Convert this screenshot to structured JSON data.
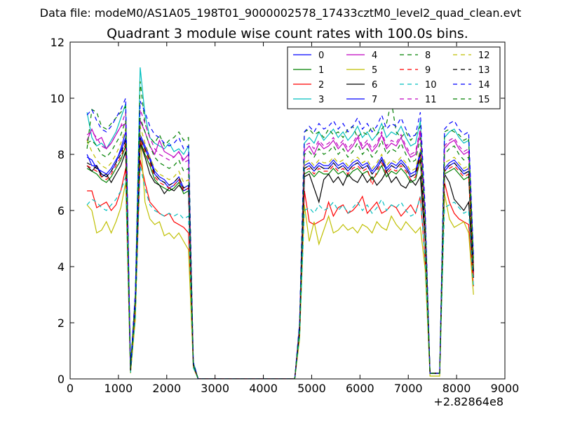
{
  "super_title": "Data file: modeM0/AS1A05_198T01_9000002578_17433cztM0_level2_quad_clean.evt",
  "chart_data": {
    "type": "line",
    "title": "Quadrant 3 module wise count rates with 100.0s bins.",
    "xlabel": "",
    "ylabel": "",
    "x_offset_label": "+2.82864e8",
    "xlim": [
      0,
      9000
    ],
    "ylim": [
      0,
      12
    ],
    "xticks": [
      0,
      1000,
      2000,
      3000,
      4000,
      5000,
      6000,
      7000,
      8000,
      9000
    ],
    "yticks": [
      0,
      2,
      4,
      6,
      8,
      10,
      12
    ],
    "xtick_labels": [
      "0",
      "1000",
      "2000",
      "3000",
      "4000",
      "5000",
      "6000",
      "7000",
      "8000",
      "9000"
    ],
    "ytick_labels": [
      "0",
      "2",
      "4",
      "6",
      "8",
      "10",
      "12"
    ],
    "legend_position": "top-right",
    "grid": false,
    "x": [
      350,
      450,
      550,
      650,
      750,
      850,
      950,
      1050,
      1150,
      1250,
      1350,
      1450,
      1550,
      1650,
      1750,
      1850,
      1950,
      2050,
      2150,
      2250,
      2350,
      2450,
      2550,
      2650,
      2750,
      4650,
      4750,
      4850,
      4950,
      5050,
      5150,
      5250,
      5350,
      5450,
      5550,
      5650,
      5750,
      5850,
      5950,
      6050,
      6150,
      6250,
      6350,
      6450,
      6550,
      6650,
      6750,
      6850,
      6950,
      7050,
      7150,
      7250,
      7350,
      7450,
      7650,
      7750,
      7850,
      7950,
      8050,
      8150,
      8250,
      8350
    ],
    "series": [
      {
        "name": "0",
        "color": "#0000ff",
        "dash": "solid",
        "values": [
          8.0,
          7.6,
          7.6,
          7.3,
          7.2,
          7.4,
          7.7,
          8.2,
          8.8,
          0.3,
          2.7,
          8.7,
          8.3,
          7.9,
          7.4,
          7.2,
          7.1,
          6.9,
          7.0,
          7.2,
          6.8,
          6.9,
          0.5,
          0.0,
          0.0,
          0.0,
          1.8,
          7.6,
          7.7,
          7.5,
          7.7,
          7.6,
          7.6,
          7.8,
          7.6,
          7.7,
          7.5,
          7.7,
          7.8,
          7.6,
          7.7,
          7.4,
          7.6,
          7.9,
          7.5,
          7.7,
          7.6,
          7.8,
          7.6,
          7.3,
          7.4,
          8.1,
          5.2,
          0.2,
          0.2,
          7.5,
          7.7,
          7.8,
          7.6,
          7.4,
          7.5,
          3.8
        ]
      },
      {
        "name": "1",
        "color": "#008000",
        "dash": "solid",
        "values": [
          7.5,
          7.4,
          7.3,
          7.1,
          7.0,
          7.2,
          7.5,
          7.8,
          8.3,
          0.3,
          2.6,
          8.5,
          8.0,
          7.6,
          7.1,
          6.9,
          6.8,
          6.7,
          6.8,
          7.0,
          6.6,
          6.7,
          0.5,
          0.0,
          0.0,
          0.0,
          1.7,
          7.3,
          7.4,
          7.2,
          7.4,
          7.3,
          7.3,
          7.5,
          7.3,
          7.4,
          7.2,
          7.4,
          7.5,
          7.3,
          7.4,
          7.1,
          7.3,
          7.6,
          7.2,
          7.4,
          7.3,
          7.5,
          7.3,
          7.0,
          7.1,
          7.8,
          5.0,
          0.2,
          0.2,
          7.3,
          7.4,
          7.5,
          7.3,
          7.1,
          7.2,
          3.7
        ]
      },
      {
        "name": "2",
        "color": "#ff0000",
        "dash": "solid",
        "values": [
          6.7,
          6.7,
          6.1,
          6.2,
          6.3,
          6.0,
          6.2,
          6.7,
          7.5,
          0.2,
          2.3,
          7.8,
          7.0,
          6.3,
          6.1,
          5.9,
          5.8,
          5.9,
          5.6,
          5.5,
          5.4,
          5.2,
          0.4,
          0.0,
          0.0,
          0.0,
          1.5,
          6.7,
          5.6,
          5.5,
          5.6,
          5.7,
          6.3,
          5.8,
          6.1,
          6.2,
          5.9,
          6.0,
          6.2,
          6.5,
          5.9,
          6.1,
          6.3,
          5.9,
          6.0,
          6.2,
          6.1,
          5.8,
          6.0,
          6.2,
          5.9,
          6.5,
          4.2,
          0.2,
          0.2,
          7.0,
          6.3,
          5.9,
          5.7,
          5.6,
          5.5,
          3.3
        ]
      },
      {
        "name": "3",
        "color": "#00bfbf",
        "dash": "solid",
        "values": [
          9.5,
          8.6,
          8.3,
          8.4,
          8.2,
          8.5,
          8.8,
          9.3,
          9.8,
          0.4,
          3.0,
          11.1,
          9.4,
          8.6,
          8.4,
          8.3,
          8.2,
          8.4,
          8.1,
          8.2,
          8.0,
          8.3,
          0.6,
          0.0,
          0.0,
          0.0,
          2.0,
          8.4,
          8.6,
          8.4,
          8.8,
          8.5,
          8.7,
          8.9,
          8.6,
          8.8,
          8.5,
          8.7,
          9.0,
          8.6,
          8.8,
          8.5,
          8.7,
          9.1,
          8.6,
          8.8,
          8.7,
          9.0,
          8.6,
          8.3,
          8.4,
          9.2,
          5.9,
          0.2,
          0.2,
          8.6,
          8.8,
          8.9,
          8.6,
          8.4,
          8.5,
          4.3
        ]
      },
      {
        "name": "4",
        "color": "#bf00bf",
        "dash": "solid",
        "values": [
          8.5,
          8.9,
          8.5,
          8.6,
          8.2,
          8.4,
          8.7,
          9.0,
          9.1,
          0.4,
          2.9,
          9.2,
          8.8,
          8.3,
          8.0,
          8.5,
          8.1,
          8.0,
          7.9,
          8.1,
          7.8,
          8.0,
          0.5,
          0.0,
          0.0,
          0.0,
          1.9,
          8.1,
          8.3,
          8.0,
          8.4,
          8.2,
          8.3,
          8.5,
          8.2,
          8.4,
          8.1,
          8.3,
          8.6,
          8.2,
          8.4,
          8.1,
          8.3,
          8.7,
          8.2,
          8.4,
          8.3,
          8.6,
          8.2,
          7.9,
          8.0,
          8.8,
          5.6,
          0.2,
          0.2,
          8.2,
          8.4,
          8.5,
          8.2,
          8.0,
          8.1,
          4.1
        ]
      },
      {
        "name": "5",
        "color": "#bfbf00",
        "dash": "solid",
        "values": [
          6.2,
          6.0,
          5.2,
          5.3,
          5.6,
          5.2,
          5.6,
          6.1,
          7.0,
          0.2,
          2.1,
          8.7,
          6.3,
          5.7,
          5.5,
          5.6,
          5.1,
          5.2,
          5.0,
          5.2,
          4.9,
          4.6,
          0.4,
          0.0,
          0.0,
          0.0,
          1.4,
          6.2,
          4.9,
          5.6,
          4.8,
          5.3,
          5.8,
          5.2,
          5.3,
          5.5,
          5.3,
          5.4,
          5.2,
          5.5,
          5.4,
          5.2,
          5.6,
          5.4,
          5.3,
          5.8,
          5.5,
          5.3,
          5.6,
          5.4,
          5.2,
          5.4,
          3.9,
          0.1,
          0.1,
          6.6,
          5.7,
          5.4,
          5.5,
          5.6,
          5.2,
          3.0
        ]
      },
      {
        "name": "6",
        "color": "#000000",
        "dash": "solid",
        "values": [
          7.6,
          7.4,
          7.6,
          7.2,
          7.3,
          7.0,
          7.3,
          7.6,
          8.1,
          0.3,
          2.6,
          8.4,
          7.9,
          7.3,
          7.0,
          6.9,
          6.6,
          6.8,
          6.7,
          6.9,
          6.7,
          6.8,
          0.5,
          0.0,
          0.0,
          0.0,
          1.7,
          7.2,
          7.3,
          6.8,
          6.3,
          7.1,
          7.3,
          7.0,
          7.2,
          6.9,
          7.3,
          7.1,
          7.0,
          7.3,
          7.0,
          7.2,
          6.9,
          7.1,
          7.4,
          7.0,
          7.2,
          6.9,
          6.8,
          7.1,
          6.9,
          7.2,
          4.9,
          0.2,
          0.2,
          7.3,
          7.0,
          6.4,
          6.2,
          6.0,
          6.3,
          3.6
        ]
      },
      {
        "name": "7",
        "color": "#0000ff",
        "dash": "solid",
        "values": [
          7.9,
          7.8,
          7.5,
          7.4,
          7.3,
          7.5,
          7.8,
          8.1,
          8.6,
          0.3,
          2.7,
          8.6,
          8.2,
          7.8,
          7.3,
          7.1,
          7.0,
          6.8,
          6.9,
          7.1,
          6.7,
          6.8,
          0.5,
          0.0,
          0.0,
          0.0,
          1.8,
          7.5,
          7.6,
          7.4,
          7.6,
          7.5,
          7.5,
          7.7,
          7.5,
          7.6,
          7.4,
          7.6,
          7.7,
          7.5,
          7.6,
          7.3,
          7.5,
          7.8,
          7.4,
          7.6,
          7.5,
          7.7,
          7.5,
          7.2,
          7.3,
          8.0,
          5.1,
          0.2,
          0.2,
          7.4,
          7.6,
          7.7,
          7.5,
          7.3,
          7.4,
          3.8
        ]
      },
      {
        "name": "8",
        "color": "#008000",
        "dash": "dash",
        "values": [
          8.2,
          9.6,
          9.5,
          9.0,
          8.9,
          9.1,
          9.3,
          9.5,
          9.7,
          0.4,
          3.0,
          10.6,
          9.1,
          8.6,
          8.4,
          8.7,
          8.3,
          8.5,
          8.6,
          8.8,
          8.5,
          8.6,
          0.6,
          0.0,
          0.0,
          0.0,
          1.9,
          8.8,
          8.9,
          8.7,
          8.8,
          8.6,
          8.9,
          8.7,
          8.8,
          8.6,
          8.9,
          9.0,
          8.6,
          8.8,
          8.7,
          9.0,
          8.7,
          8.9,
          9.1,
          9.9,
          8.8,
          8.6,
          8.8,
          8.5,
          8.7,
          9.0,
          5.9,
          0.2,
          0.2,
          8.8,
          8.9,
          8.8,
          8.7,
          8.5,
          8.6,
          4.2
        ]
      },
      {
        "name": "9",
        "color": "#ff0000",
        "dash": "dash",
        "values": [
          7.6,
          7.5,
          7.4,
          7.2,
          7.1,
          7.3,
          7.6,
          7.9,
          8.4,
          0.3,
          2.6,
          8.5,
          8.1,
          7.7,
          7.2,
          7.0,
          6.9,
          6.8,
          6.9,
          7.1,
          6.7,
          6.8,
          0.5,
          0.0,
          0.0,
          0.0,
          1.7,
          7.4,
          7.5,
          7.3,
          7.5,
          7.4,
          7.4,
          7.6,
          7.4,
          7.5,
          7.3,
          7.5,
          7.6,
          7.4,
          7.5,
          6.9,
          7.4,
          7.7,
          7.3,
          7.5,
          7.4,
          7.6,
          7.4,
          7.1,
          7.2,
          7.9,
          5.0,
          0.2,
          0.2,
          7.4,
          7.5,
          7.6,
          7.4,
          7.2,
          7.3,
          3.7
        ]
      },
      {
        "name": "10",
        "color": "#00bfbf",
        "dash": "dash",
        "values": [
          6.2,
          6.4,
          6.3,
          6.1,
          6.0,
          6.2,
          6.4,
          6.7,
          7.2,
          0.2,
          2.2,
          7.6,
          6.8,
          6.2,
          6.0,
          5.9,
          5.8,
          5.9,
          5.8,
          5.9,
          5.7,
          5.8,
          0.4,
          0.0,
          0.0,
          0.0,
          1.5,
          6.0,
          6.1,
          5.9,
          6.2,
          6.0,
          6.1,
          6.3,
          6.0,
          6.2,
          5.9,
          6.1,
          6.3,
          6.0,
          6.2,
          5.9,
          6.1,
          6.4,
          6.0,
          6.2,
          6.1,
          6.3,
          6.0,
          5.8,
          5.9,
          6.5,
          4.2,
          0.2,
          0.2,
          6.1,
          6.2,
          6.3,
          6.1,
          5.9,
          6.0,
          3.3
        ]
      },
      {
        "name": "11",
        "color": "#bf00bf",
        "dash": "dash",
        "values": [
          8.7,
          8.8,
          8.6,
          8.3,
          8.2,
          8.4,
          8.7,
          9.0,
          9.5,
          0.4,
          2.9,
          9.6,
          9.1,
          8.6,
          8.2,
          8.0,
          7.9,
          7.8,
          7.9,
          8.1,
          7.7,
          7.8,
          0.5,
          0.0,
          0.0,
          0.0,
          1.9,
          8.3,
          8.4,
          8.2,
          8.5,
          8.3,
          8.4,
          8.6,
          8.3,
          8.5,
          8.2,
          8.4,
          8.7,
          8.3,
          8.5,
          8.2,
          8.4,
          8.8,
          8.3,
          8.5,
          8.4,
          8.7,
          8.3,
          8.0,
          8.1,
          8.9,
          5.7,
          0.2,
          0.2,
          8.3,
          8.5,
          8.6,
          8.3,
          8.1,
          8.2,
          4.1
        ]
      },
      {
        "name": "12",
        "color": "#bfbf00",
        "dash": "dash",
        "values": [
          8.5,
          8.1,
          7.8,
          7.6,
          7.5,
          7.7,
          8.0,
          8.4,
          8.9,
          0.3,
          2.8,
          9.0,
          8.4,
          7.9,
          7.5,
          7.3,
          7.2,
          7.1,
          7.2,
          7.4,
          7.0,
          7.1,
          0.5,
          0.0,
          0.0,
          0.0,
          1.8,
          7.7,
          7.8,
          7.6,
          7.8,
          7.7,
          7.7,
          7.9,
          7.7,
          7.8,
          7.6,
          7.8,
          7.9,
          7.7,
          7.8,
          7.5,
          7.7,
          8.0,
          7.6,
          7.8,
          7.7,
          7.9,
          7.7,
          7.4,
          7.5,
          8.2,
          5.3,
          0.2,
          0.2,
          7.7,
          7.8,
          7.9,
          7.7,
          7.5,
          7.6,
          3.9
        ]
      },
      {
        "name": "13",
        "color": "#000000",
        "dash": "dash",
        "values": [
          7.7,
          7.6,
          7.5,
          7.3,
          7.2,
          7.4,
          7.7,
          8.0,
          8.5,
          0.3,
          2.7,
          8.6,
          8.2,
          7.8,
          7.3,
          7.1,
          7.0,
          6.9,
          7.0,
          7.2,
          6.8,
          6.9,
          0.5,
          0.0,
          0.0,
          0.0,
          1.7,
          7.5,
          7.6,
          7.4,
          7.6,
          7.5,
          7.5,
          7.7,
          7.5,
          7.6,
          7.4,
          7.6,
          7.7,
          7.5,
          7.6,
          7.3,
          7.5,
          7.8,
          7.4,
          7.6,
          7.5,
          7.7,
          7.5,
          7.2,
          7.3,
          8.0,
          5.1,
          0.2,
          0.2,
          7.5,
          7.6,
          7.7,
          7.5,
          7.3,
          7.4,
          3.8
        ]
      },
      {
        "name": "14",
        "color": "#0000ff",
        "dash": "dash",
        "values": [
          9.4,
          9.6,
          9.2,
          8.9,
          8.8,
          9.0,
          9.3,
          9.6,
          10.0,
          0.4,
          3.1,
          9.9,
          9.5,
          9.0,
          8.7,
          8.6,
          8.4,
          8.3,
          8.4,
          8.6,
          8.2,
          8.3,
          0.6,
          0.0,
          0.0,
          0.0,
          2.0,
          8.8,
          9.0,
          8.8,
          9.1,
          8.9,
          9.0,
          9.2,
          8.9,
          9.1,
          8.8,
          9.0,
          9.3,
          8.9,
          9.1,
          8.8,
          9.0,
          9.4,
          8.9,
          9.1,
          9.0,
          9.3,
          8.9,
          8.6,
          8.7,
          9.5,
          6.1,
          0.2,
          0.2,
          8.9,
          9.1,
          9.2,
          8.9,
          8.7,
          8.8,
          4.4
        ]
      },
      {
        "name": "15",
        "color": "#008000",
        "dash": "dash",
        "values": [
          8.4,
          8.5,
          8.3,
          8.0,
          7.9,
          8.1,
          8.4,
          8.7,
          9.2,
          0.4,
          2.8,
          9.3,
          8.8,
          8.3,
          7.9,
          7.7,
          7.6,
          7.5,
          7.6,
          7.8,
          7.4,
          7.5,
          0.5,
          0.0,
          0.0,
          0.0,
          1.8,
          8.0,
          8.1,
          7.9,
          8.2,
          8.0,
          8.1,
          8.3,
          8.0,
          8.2,
          7.9,
          8.1,
          8.4,
          8.0,
          8.2,
          7.9,
          8.1,
          8.5,
          8.0,
          8.2,
          8.1,
          8.4,
          8.0,
          7.7,
          7.8,
          8.6,
          5.5,
          0.2,
          0.2,
          8.0,
          8.2,
          8.3,
          8.0,
          7.8,
          7.9,
          4.0
        ]
      }
    ]
  }
}
